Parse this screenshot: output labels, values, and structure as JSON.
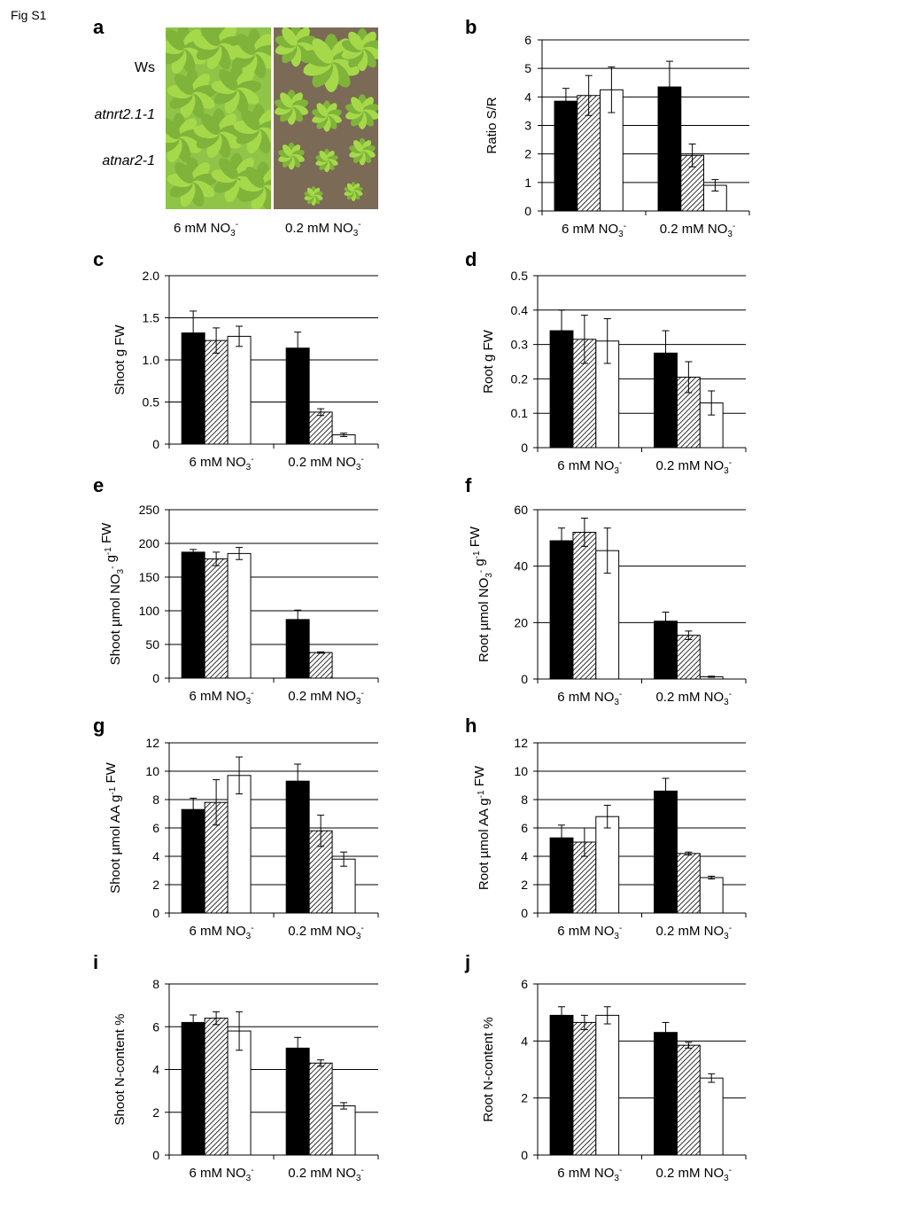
{
  "figure": {
    "label": "Fig S1"
  },
  "panel_a": {
    "letter": "a",
    "genotypes": [
      "Ws",
      "atnrt2.1-1",
      "atnar2-1"
    ],
    "conditions": [
      "6 mM NO3-",
      "0.2 mM NO3-"
    ],
    "colors": {
      "left_photo_bg": "#8fc448",
      "right_photo_bg": "#7a6a56",
      "leaf": "#a6d94a",
      "leaf_dark": "#7fb33a"
    }
  },
  "legend_styles": {
    "Ws": "#000000 solid",
    "atnrt2.1-1": "hatched",
    "atnar2-1": "#ffffff open"
  },
  "chart_data": [
    {
      "panel": "b",
      "type": "bar",
      "categories": [
        "6 mM NO3-",
        "0.2 mM NO3-"
      ],
      "series": [
        {
          "values": [
            3.85,
            4.35
          ],
          "errors": [
            0.45,
            0.9
          ]
        },
        {
          "values": [
            4.05,
            1.95
          ],
          "errors": [
            0.7,
            0.4
          ]
        },
        {
          "values": [
            4.25,
            0.9
          ],
          "errors": [
            0.8,
            0.2
          ]
        }
      ],
      "ylabel": "Ratio S/R",
      "ylim": [
        0,
        6
      ],
      "yticks": [
        "0",
        "1",
        "2",
        "3",
        "4",
        "5",
        "6"
      ]
    },
    {
      "panel": "c",
      "type": "bar",
      "categories": [
        "6 mM NO3-",
        "0.2 mM NO3-"
      ],
      "series": [
        {
          "values": [
            1.32,
            1.14
          ],
          "errors": [
            0.26,
            0.19
          ]
        },
        {
          "values": [
            1.23,
            0.38
          ],
          "errors": [
            0.15,
            0.04
          ]
        },
        {
          "values": [
            1.28,
            0.11
          ],
          "errors": [
            0.12,
            0.02
          ]
        }
      ],
      "ylabel": "Shoot g FW",
      "ylim": [
        0,
        2.0
      ],
      "yticks": [
        "0",
        "0.5",
        "1.0",
        "1.5",
        "2.0"
      ]
    },
    {
      "panel": "d",
      "type": "bar",
      "categories": [
        "6 mM NO3-",
        "0.2 mM NO3-"
      ],
      "series": [
        {
          "values": [
            0.34,
            0.275
          ],
          "errors": [
            0.06,
            0.065
          ]
        },
        {
          "values": [
            0.315,
            0.205
          ],
          "errors": [
            0.07,
            0.045
          ]
        },
        {
          "values": [
            0.31,
            0.13
          ],
          "errors": [
            0.065,
            0.035
          ]
        }
      ],
      "ylabel": "Root g FW",
      "ylim": [
        0,
        0.5
      ],
      "yticks": [
        "0",
        "0.1",
        "0.2",
        "0.3",
        "0.4",
        "0.5"
      ]
    },
    {
      "panel": "e",
      "type": "bar",
      "categories": [
        "6 mM NO3-",
        "0.2 mM NO3-"
      ],
      "series": [
        {
          "values": [
            187,
            87
          ],
          "errors": [
            4,
            14
          ]
        },
        {
          "values": [
            177,
            38
          ],
          "errors": [
            10,
            1
          ]
        },
        {
          "values": [
            185,
            0
          ],
          "errors": [
            9,
            0
          ]
        }
      ],
      "ylabel": "Shoot µmol NO3- g-1 FW",
      "ylim": [
        0,
        250
      ],
      "yticks": [
        "0",
        "50",
        "100",
        "150",
        "200",
        "250"
      ]
    },
    {
      "panel": "f",
      "type": "bar",
      "categories": [
        "6 mM NO3-",
        "0.2 mM NO3-"
      ],
      "series": [
        {
          "values": [
            49,
            20.5
          ],
          "errors": [
            4.5,
            3.2
          ]
        },
        {
          "values": [
            52,
            15.5
          ],
          "errors": [
            5,
            1.5
          ]
        },
        {
          "values": [
            45.5,
            0.8
          ],
          "errors": [
            8,
            0.2
          ]
        }
      ],
      "ylabel": "Root µmol NO3- g-1 FW",
      "ylim": [
        0,
        60
      ],
      "yticks": [
        "0",
        "20",
        "40",
        "60"
      ]
    },
    {
      "panel": "g",
      "type": "bar",
      "categories": [
        "6 mM NO3-",
        "0.2 mM NO3-"
      ],
      "series": [
        {
          "values": [
            7.3,
            9.3
          ],
          "errors": [
            0.8,
            1.2
          ]
        },
        {
          "values": [
            7.8,
            5.8
          ],
          "errors": [
            1.6,
            1.1
          ]
        },
        {
          "values": [
            9.7,
            3.8
          ],
          "errors": [
            1.3,
            0.5
          ]
        }
      ],
      "ylabel": "Shoot µmol AA g-1 FW",
      "ylim": [
        0,
        12
      ],
      "yticks": [
        "0",
        "2",
        "4",
        "6",
        "8",
        "10",
        "12"
      ]
    },
    {
      "panel": "h",
      "type": "bar",
      "categories": [
        "6 mM NO3-",
        "0.2 mM NO3-"
      ],
      "series": [
        {
          "values": [
            5.3,
            8.6
          ],
          "errors": [
            0.9,
            0.9
          ]
        },
        {
          "values": [
            5.0,
            4.2
          ],
          "errors": [
            1.0,
            0.1
          ]
        },
        {
          "values": [
            6.8,
            2.5
          ],
          "errors": [
            0.8,
            0.1
          ]
        }
      ],
      "ylabel": "Root µmol AA g-1 FW",
      "ylim": [
        0,
        12
      ],
      "yticks": [
        "0",
        "2",
        "4",
        "6",
        "8",
        "10",
        "12"
      ]
    },
    {
      "panel": "i",
      "type": "bar",
      "categories": [
        "6 mM NO3-",
        "0.2 mM NO3-"
      ],
      "series": [
        {
          "values": [
            6.2,
            5.0
          ],
          "errors": [
            0.35,
            0.5
          ]
        },
        {
          "values": [
            6.4,
            4.3
          ],
          "errors": [
            0.3,
            0.15
          ]
        },
        {
          "values": [
            5.8,
            2.3
          ],
          "errors": [
            0.9,
            0.15
          ]
        }
      ],
      "ylabel": "Shoot N-content %",
      "ylim": [
        0,
        8
      ],
      "yticks": [
        "0",
        "2",
        "4",
        "6",
        "8"
      ]
    },
    {
      "panel": "j",
      "type": "bar",
      "categories": [
        "6 mM NO3-",
        "0.2 mM NO3-"
      ],
      "series": [
        {
          "values": [
            4.9,
            4.3
          ],
          "errors": [
            0.3,
            0.35
          ]
        },
        {
          "values": [
            4.65,
            3.85
          ],
          "errors": [
            0.25,
            0.1
          ]
        },
        {
          "values": [
            4.9,
            2.7
          ],
          "errors": [
            0.3,
            0.15
          ]
        }
      ],
      "ylabel": "Root N-content %",
      "ylim": [
        0,
        6
      ],
      "yticks": [
        "0",
        "2",
        "4",
        "6"
      ]
    }
  ]
}
